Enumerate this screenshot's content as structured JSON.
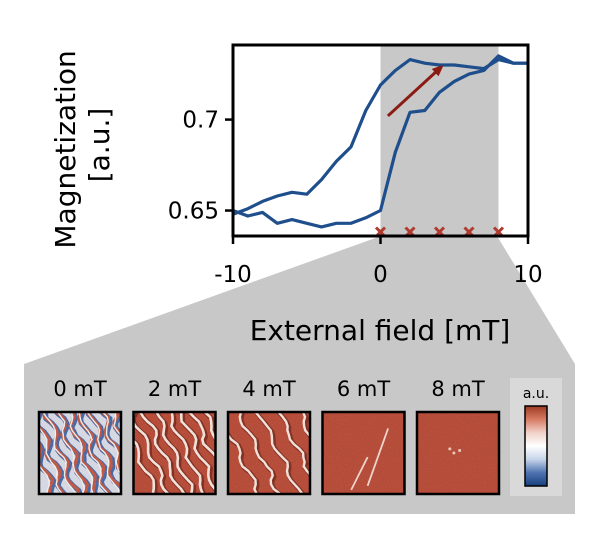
{
  "chart_data": {
    "type": "line",
    "title": "",
    "xlabel": "External field [mT]",
    "ylabel_lines": [
      "Magnetization",
      "[a.u.]"
    ],
    "xlim": [
      -10,
      10
    ],
    "ylim": [
      0.636,
      0.741
    ],
    "x_ticks": [
      -10,
      0,
      10
    ],
    "x_tick_labels": [
      "-10",
      "0",
      "10"
    ],
    "y_ticks": [
      0.65,
      0.7
    ],
    "y_tick_labels": [
      "0.65",
      "0.7"
    ],
    "grid": false,
    "shaded_range": [
      0,
      8
    ],
    "series": [
      {
        "color": "#1f4e8c",
        "x": [
          -10,
          -9,
          -8,
          -7,
          -6,
          -5,
          -4,
          -3,
          -2,
          -1,
          0,
          1,
          2,
          3,
          4,
          5,
          6,
          7,
          8,
          9,
          10
        ],
        "y": [
          0.648,
          0.651,
          0.655,
          0.658,
          0.66,
          0.659,
          0.667,
          0.677,
          0.685,
          0.705,
          0.719,
          0.727,
          0.733,
          0.731,
          0.73,
          0.73,
          0.729,
          0.728,
          0.733,
          0.731,
          0.731
        ]
      },
      {
        "color": "#1f4e8c",
        "x": [
          -10,
          -9,
          -8,
          -7,
          -6,
          -5,
          -4,
          -3,
          -2,
          -1,
          0,
          1,
          2,
          3,
          4,
          5,
          6,
          7,
          8,
          9,
          10
        ],
        "y": [
          0.65,
          0.647,
          0.649,
          0.643,
          0.645,
          0.643,
          0.641,
          0.643,
          0.643,
          0.646,
          0.65,
          0.682,
          0.704,
          0.705,
          0.715,
          0.721,
          0.725,
          0.727,
          0.735,
          0.731,
          0.731
        ]
      }
    ],
    "markers": {
      "shape": "x",
      "color": "#b03a2e",
      "x": [
        0,
        2,
        4,
        6,
        8
      ]
    },
    "arrow": {
      "color": "#8b1c14",
      "from": [
        0.5,
        0.702
      ],
      "to": [
        4,
        0.728
      ]
    }
  },
  "panels": [
    {
      "label": "0 mT",
      "pattern": "maze-domains"
    },
    {
      "label": "2 mT",
      "pattern": "stripe-domains"
    },
    {
      "label": "4 mT",
      "pattern": "sparse-stripes"
    },
    {
      "label": "6 mT",
      "pattern": "isolated-lines"
    },
    {
      "label": "8 mT",
      "pattern": "saturated"
    }
  ],
  "colorbar": {
    "label": "a.u.",
    "colors": [
      "#9e3a24",
      "#d77a64",
      "#f1d2c8",
      "#ffffff",
      "#c7d5ea",
      "#4f73b0",
      "#163f7e"
    ]
  },
  "colors": {
    "shade": "#c8c8c8",
    "line": "#1f4e8c",
    "marker": "#b03a2e",
    "arrow": "#8b1c14",
    "panel_base": "#b5432e"
  }
}
